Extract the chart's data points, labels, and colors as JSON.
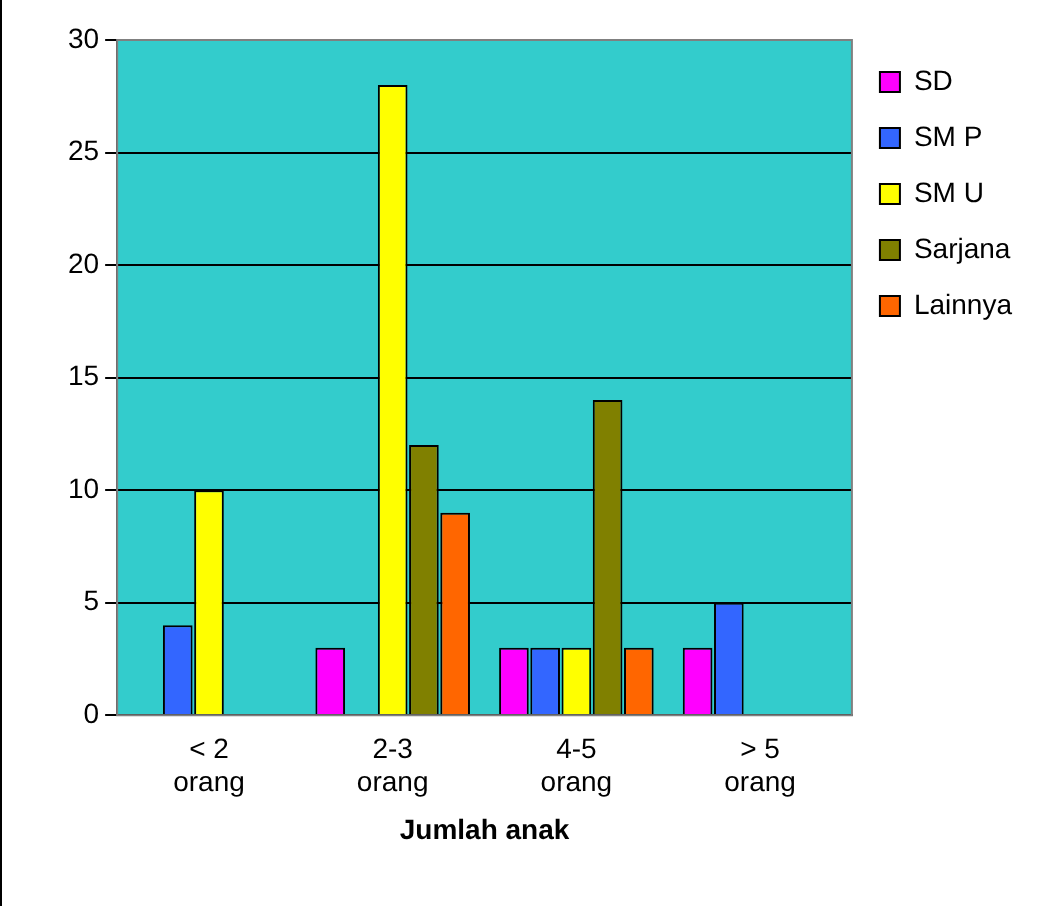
{
  "chart_data": {
    "type": "bar",
    "xlabel": "Jumlah anak",
    "categories": [
      "< 2\norang",
      "2-3\norang",
      "4-5\norang",
      "> 5\norang"
    ],
    "series": [
      {
        "name": "SD",
        "color": "#ff00ff",
        "values": [
          null,
          3,
          3,
          3
        ]
      },
      {
        "name": "SM P",
        "color": "#3366ff",
        "values": [
          4,
          null,
          3,
          5
        ]
      },
      {
        "name": "SM U",
        "color": "#ffff00",
        "values": [
          10,
          28,
          3,
          null
        ]
      },
      {
        "name": "Sarjana",
        "color": "#808000",
        "values": [
          null,
          12,
          14,
          null
        ]
      },
      {
        "name": "Lainnya",
        "color": "#ff6600",
        "values": [
          null,
          9,
          3,
          null
        ]
      }
    ],
    "ylim": [
      0,
      30
    ],
    "yticks": [
      0,
      5,
      10,
      15,
      20,
      25,
      30
    ],
    "grid": "y",
    "legend": "right"
  }
}
